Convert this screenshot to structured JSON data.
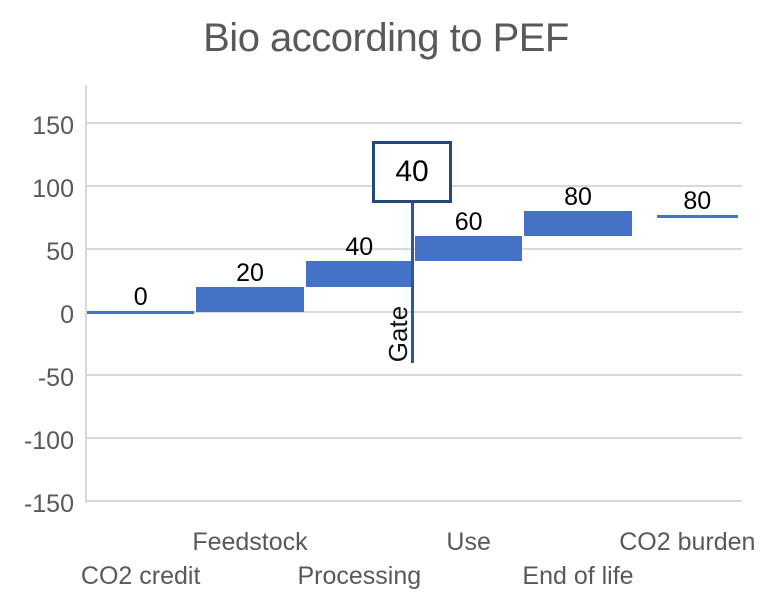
{
  "title": "Bio according to PEF",
  "chart_data": {
    "type": "bar",
    "subtype": "waterfall",
    "title": "Bio according to PEF",
    "categories": [
      "CO2 credit",
      "Feedstock",
      "Processing",
      "Use",
      "End of life",
      "CO2 burden"
    ],
    "segments": [
      {
        "category": "CO2 credit",
        "start": 0,
        "end": 0,
        "value_label": "0",
        "style": "line"
      },
      {
        "category": "Feedstock",
        "start": 0,
        "end": 20,
        "value_label": "20",
        "style": "bar"
      },
      {
        "category": "Processing",
        "start": 20,
        "end": 40,
        "value_label": "40",
        "style": "bar"
      },
      {
        "category": "Use",
        "start": 40,
        "end": 60,
        "value_label": "60",
        "style": "bar"
      },
      {
        "category": "End of life",
        "start": 60,
        "end": 80,
        "value_label": "80",
        "style": "bar"
      },
      {
        "category": "CO2 burden",
        "start": 80,
        "end": 80,
        "value_label": "80",
        "style": "line",
        "render_at": 76,
        "inset": [
          24,
          4
        ]
      }
    ],
    "yticks": [
      150,
      100,
      50,
      0,
      -50,
      -100,
      -150
    ],
    "ylim": [
      -150,
      180
    ],
    "grid": true,
    "legend": "none",
    "category_labels_staggered": true,
    "annotation": {
      "box_label": "40",
      "line_label": "Gate",
      "position": "between Processing and Use"
    },
    "colors": {
      "bar": "#4472C4",
      "gate_line": "#2E5894",
      "box_border": "#24477C",
      "gridline": "#D9D9D9",
      "axis_text": "#595959",
      "value_text": "#000000",
      "title_text": "#595959"
    }
  }
}
